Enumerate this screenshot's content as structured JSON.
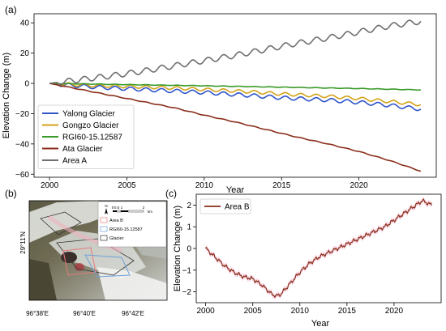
{
  "chart_data": [
    {
      "panel_label": "(a)",
      "type": "line",
      "xlabel": "Year",
      "ylabel": "Elevation Change (m)",
      "xlim": [
        1999,
        2025
      ],
      "ylim": [
        -62,
        46
      ],
      "x_ticks": [
        2000,
        2005,
        2010,
        2015,
        2020
      ],
      "y_ticks": [
        -60,
        -40,
        -20,
        0,
        20,
        40
      ],
      "x_tick_labels": [
        "2000",
        "2005",
        "2010",
        "2015",
        "2020"
      ],
      "y_tick_labels": [
        "−60",
        "−40",
        "−20",
        "0",
        "20",
        "40"
      ],
      "grid": false,
      "legend": "lower-left",
      "series": [
        {
          "name": "Yalong Glacier",
          "color": "#2f55c8",
          "x": [
            2000,
            2001,
            2003,
            2005,
            2008,
            2010,
            2013,
            2015,
            2018,
            2020,
            2022,
            2024
          ],
          "y": [
            0,
            -1,
            -2.5,
            -3.5,
            -5,
            -6,
            -8,
            -9.5,
            -11,
            -12.5,
            -14.5,
            -17
          ],
          "wobble": 1.2
        },
        {
          "name": "Gongzo Glacier",
          "color": "#d4a217",
          "x": [
            2000,
            2001,
            2003,
            2005,
            2008,
            2010,
            2013,
            2015,
            2018,
            2020,
            2022,
            2024
          ],
          "y": [
            0,
            -0.5,
            -1.5,
            -2,
            -3,
            -4,
            -5.5,
            -7,
            -8.5,
            -10,
            -12,
            -14
          ],
          "wobble": 1.0
        },
        {
          "name": "RGI60-15.12587",
          "color": "#3a9a2a",
          "x": [
            2000,
            2005,
            2010,
            2015,
            2020,
            2024
          ],
          "y": [
            0,
            -0.8,
            -1.6,
            -2.5,
            -3.4,
            -4.3
          ],
          "wobble": 0.15
        },
        {
          "name": "Ata Glacier",
          "color": "#8a2e1a",
          "x": [
            2000,
            2002,
            2004,
            2006,
            2008,
            2010,
            2012,
            2014,
            2016,
            2018,
            2020,
            2022,
            2024
          ],
          "y": [
            0,
            -4,
            -8,
            -12,
            -16,
            -21,
            -25.5,
            -30.5,
            -35.5,
            -40,
            -45,
            -51,
            -58
          ],
          "wobble": 0.2
        },
        {
          "name": "Area A",
          "color": "#6f6f6f",
          "x": [
            2000,
            2002,
            2004,
            2006,
            2008,
            2010,
            2012,
            2014,
            2016,
            2018,
            2020,
            2022,
            2024
          ],
          "y": [
            0,
            2.5,
            5,
            8,
            11.5,
            15,
            18.5,
            22.5,
            26.5,
            30,
            34,
            38,
            41
          ],
          "wobble": 1.8
        }
      ]
    },
    {
      "panel_label": "(c)",
      "type": "line",
      "xlabel": "Year",
      "ylabel": "Elevation Change (m)",
      "xlim": [
        1999,
        2025
      ],
      "ylim": [
        -2.5,
        2.5
      ],
      "x_ticks": [
        2000,
        2005,
        2010,
        2015,
        2020
      ],
      "y_ticks": [
        -2,
        -1,
        0,
        1,
        2
      ],
      "x_tick_labels": [
        "2000",
        "2005",
        "2010",
        "2015",
        "2020"
      ],
      "y_tick_labels": [
        "−2",
        "−1",
        "0",
        "1",
        "2"
      ],
      "grid": false,
      "legend": "top-left",
      "series": [
        {
          "name": "Area B",
          "color": "#8a2e1a",
          "band_color": "#f7c9dc",
          "x": [
            2000,
            2001,
            2002,
            2003,
            2004,
            2005,
            2006,
            2007,
            2007.5,
            2008,
            2009,
            2010,
            2011,
            2012,
            2013,
            2014,
            2015,
            2016,
            2017,
            2018,
            2019,
            2020,
            2021,
            2022,
            2023,
            2023.5,
            2024
          ],
          "y": [
            0,
            -0.4,
            -0.8,
            -1.1,
            -1.3,
            -1.4,
            -1.7,
            -2.1,
            -2.2,
            -2.1,
            -1.6,
            -1.1,
            -0.7,
            -0.4,
            -0.2,
            0,
            0.2,
            0.4,
            0.6,
            0.8,
            1.0,
            1.3,
            1.6,
            1.9,
            2.2,
            2.1,
            2.0
          ]
        }
      ]
    }
  ],
  "map_panel": {
    "panel_label": "(b)",
    "north_label": "N",
    "scale_labels": [
      "0",
      "0.5",
      "1",
      "2"
    ],
    "scale_unit": "km",
    "legend_items": [
      {
        "label": "Area B",
        "color": "#e87a7a"
      },
      {
        "label": "RGI60-15.12587",
        "color": "#6f9fd8"
      },
      {
        "label": "Glacier",
        "color": "#333333"
      }
    ],
    "lat_label": "29°11'N",
    "lon_labels": [
      "96°38'E",
      "96°40'E",
      "96°42'E"
    ]
  }
}
